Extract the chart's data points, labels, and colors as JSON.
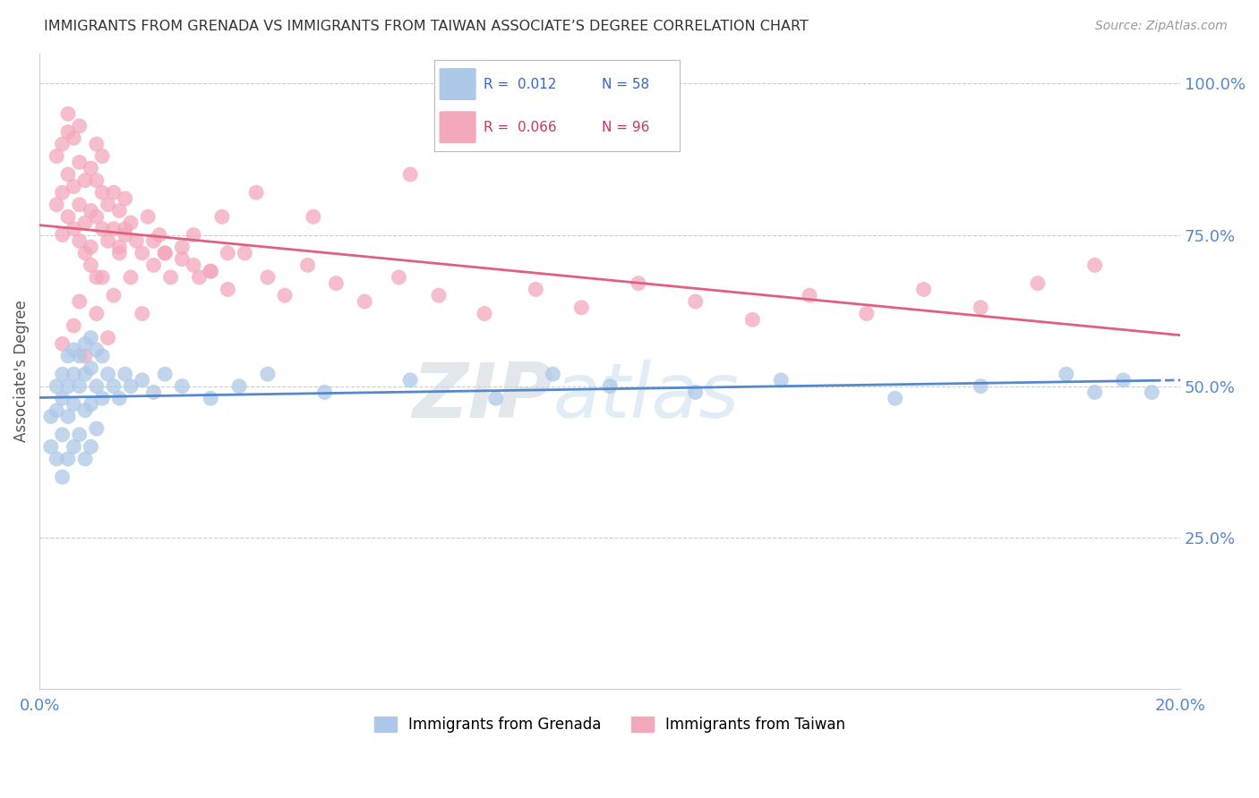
{
  "title": "IMMIGRANTS FROM GRENADA VS IMMIGRANTS FROM TAIWAN ASSOCIATE’S DEGREE CORRELATION CHART",
  "source": "Source: ZipAtlas.com",
  "ylabel": "Associate's Degree",
  "ytick_labels": [
    "100.0%",
    "75.0%",
    "50.0%",
    "25.0%"
  ],
  "ytick_values": [
    1.0,
    0.75,
    0.5,
    0.25
  ],
  "legend1_color": "#adc8e8",
  "legend2_color": "#f4a8bc",
  "line1_color": "#5588cc",
  "line2_color": "#e06080",
  "scatter1_color": "#adc8e8",
  "scatter2_color": "#f4a8bc",
  "background_color": "#ffffff",
  "grid_color": "#cccccc",
  "title_color": "#333333",
  "axis_label_color": "#5588cc",
  "xmin": 0.0,
  "xmax": 0.2,
  "ymin": 0.0,
  "ymax": 1.05,
  "grenada_x": [
    0.002,
    0.002,
    0.003,
    0.003,
    0.003,
    0.004,
    0.004,
    0.004,
    0.004,
    0.005,
    0.005,
    0.005,
    0.005,
    0.006,
    0.006,
    0.006,
    0.006,
    0.007,
    0.007,
    0.007,
    0.008,
    0.008,
    0.008,
    0.008,
    0.009,
    0.009,
    0.009,
    0.009,
    0.01,
    0.01,
    0.01,
    0.011,
    0.011,
    0.012,
    0.013,
    0.014,
    0.015,
    0.016,
    0.018,
    0.02,
    0.022,
    0.025,
    0.03,
    0.035,
    0.04,
    0.05,
    0.065,
    0.08,
    0.09,
    0.1,
    0.115,
    0.13,
    0.15,
    0.165,
    0.18,
    0.185,
    0.19,
    0.195
  ],
  "grenada_y": [
    0.45,
    0.4,
    0.5,
    0.46,
    0.38,
    0.52,
    0.48,
    0.42,
    0.35,
    0.55,
    0.5,
    0.45,
    0.38,
    0.56,
    0.52,
    0.47,
    0.4,
    0.55,
    0.5,
    0.42,
    0.57,
    0.52,
    0.46,
    0.38,
    0.58,
    0.53,
    0.47,
    0.4,
    0.56,
    0.5,
    0.43,
    0.55,
    0.48,
    0.52,
    0.5,
    0.48,
    0.52,
    0.5,
    0.51,
    0.49,
    0.52,
    0.5,
    0.48,
    0.5,
    0.52,
    0.49,
    0.51,
    0.48,
    0.52,
    0.5,
    0.49,
    0.51,
    0.48,
    0.5,
    0.52,
    0.49,
    0.51,
    0.49
  ],
  "taiwan_x": [
    0.003,
    0.003,
    0.004,
    0.004,
    0.004,
    0.005,
    0.005,
    0.005,
    0.006,
    0.006,
    0.006,
    0.007,
    0.007,
    0.007,
    0.007,
    0.008,
    0.008,
    0.008,
    0.009,
    0.009,
    0.009,
    0.01,
    0.01,
    0.01,
    0.01,
    0.011,
    0.011,
    0.011,
    0.012,
    0.012,
    0.013,
    0.013,
    0.014,
    0.014,
    0.015,
    0.015,
    0.016,
    0.017,
    0.018,
    0.019,
    0.02,
    0.021,
    0.022,
    0.023,
    0.025,
    0.027,
    0.03,
    0.033,
    0.036,
    0.04,
    0.043,
    0.047,
    0.052,
    0.057,
    0.063,
    0.07,
    0.078,
    0.087,
    0.095,
    0.105,
    0.115,
    0.125,
    0.135,
    0.145,
    0.155,
    0.165,
    0.175,
    0.185,
    0.065,
    0.048,
    0.033,
    0.028,
    0.018,
    0.012,
    0.008,
    0.006,
    0.004,
    0.007,
    0.011,
    0.014,
    0.005,
    0.009,
    0.015,
    0.02,
    0.025,
    0.03,
    0.01,
    0.013,
    0.016,
    0.022,
    0.027,
    0.032,
    0.038
  ],
  "taiwan_y": [
    0.8,
    0.88,
    0.75,
    0.82,
    0.9,
    0.78,
    0.85,
    0.92,
    0.76,
    0.83,
    0.91,
    0.74,
    0.8,
    0.87,
    0.93,
    0.77,
    0.84,
    0.72,
    0.79,
    0.86,
    0.7,
    0.78,
    0.84,
    0.9,
    0.68,
    0.76,
    0.82,
    0.88,
    0.74,
    0.8,
    0.76,
    0.82,
    0.73,
    0.79,
    0.75,
    0.81,
    0.77,
    0.74,
    0.72,
    0.78,
    0.7,
    0.75,
    0.72,
    0.68,
    0.73,
    0.7,
    0.69,
    0.66,
    0.72,
    0.68,
    0.65,
    0.7,
    0.67,
    0.64,
    0.68,
    0.65,
    0.62,
    0.66,
    0.63,
    0.67,
    0.64,
    0.61,
    0.65,
    0.62,
    0.66,
    0.63,
    0.67,
    0.7,
    0.85,
    0.78,
    0.72,
    0.68,
    0.62,
    0.58,
    0.55,
    0.6,
    0.57,
    0.64,
    0.68,
    0.72,
    0.95,
    0.73,
    0.76,
    0.74,
    0.71,
    0.69,
    0.62,
    0.65,
    0.68,
    0.72,
    0.75,
    0.78,
    0.82
  ]
}
